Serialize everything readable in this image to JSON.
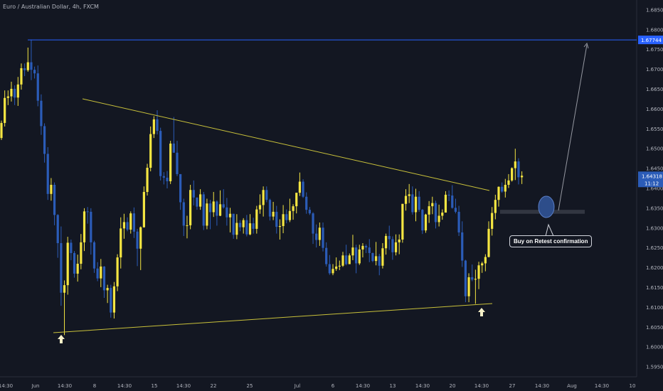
{
  "title": "Euro / Australian Dollar, 4h, FXCM",
  "colors": {
    "background": "#131722",
    "bull": "#f5e642",
    "bear": "#2b5cb8",
    "trendline": "#c9c13a",
    "level": "#2962ff",
    "arrow": "#f5f0c8",
    "zone": "#363a45",
    "ellipse": "#2d4d8a"
  },
  "icons": [
    "up-arrow-icon",
    "up-arrow-icon"
  ],
  "annotation": {
    "text": "Buy on Retest confirmation"
  },
  "price_labels": {
    "level": "1.67744",
    "current": "1.64318",
    "countdown": "11:12"
  },
  "chart_data": {
    "type": "candlestick",
    "title": "Euro / Australian Dollar, 4h, FXCM",
    "ylim": [
      1.5925,
      1.6875
    ],
    "y_ticks": [
      "1.68500",
      "1.68000",
      "1.67500",
      "1.67000",
      "1.66500",
      "1.66000",
      "1.65500",
      "1.65000",
      "1.64500",
      "1.64000",
      "1.63500",
      "1.63000",
      "1.62500",
      "1.62000",
      "1.61500",
      "1.61000",
      "1.60500",
      "1.60000",
      "1.59500"
    ],
    "x_ticks": [
      "14:30",
      "Jun",
      "14:30",
      "8",
      "14:30",
      "15",
      "14:30",
      "22",
      "25",
      "Jul",
      "6",
      "14:30",
      "13",
      "14:30",
      "20",
      "14:30",
      "27",
      "14:30",
      "Aug",
      "14:30",
      "10"
    ],
    "horizontal_level": 1.67744,
    "current_price": 1.64318,
    "candles": [
      [
        1.6527,
        1.6571,
        1.6522,
        1.6565
      ],
      [
        1.6565,
        1.6647,
        1.6556,
        1.6628
      ],
      [
        1.6628,
        1.6647,
        1.661,
        1.6632
      ],
      [
        1.6632,
        1.6669,
        1.6619,
        1.6651
      ],
      [
        1.6651,
        1.666,
        1.661,
        1.6629
      ],
      [
        1.6629,
        1.6681,
        1.6608,
        1.6662
      ],
      [
        1.6662,
        1.6715,
        1.6649,
        1.6703
      ],
      [
        1.6703,
        1.6715,
        1.6683,
        1.6698
      ],
      [
        1.6698,
        1.6755,
        1.6694,
        1.6718
      ],
      [
        1.6718,
        1.6775,
        1.6673,
        1.6699
      ],
      [
        1.6699,
        1.6707,
        1.6677,
        1.669
      ],
      [
        1.669,
        1.671,
        1.6607,
        1.6621
      ],
      [
        1.6621,
        1.6637,
        1.6535,
        1.6557
      ],
      [
        1.6557,
        1.6564,
        1.6465,
        1.6487
      ],
      [
        1.6487,
        1.6504,
        1.6371,
        1.6386
      ],
      [
        1.6386,
        1.6426,
        1.6369,
        1.6409
      ],
      [
        1.6409,
        1.6415,
        1.6307,
        1.6333
      ],
      [
        1.6333,
        1.6335,
        1.6225,
        1.6262
      ],
      [
        1.6262,
        1.6304,
        1.6104,
        1.6137
      ],
      [
        1.6137,
        1.6168,
        1.603,
        1.6156
      ],
      [
        1.6156,
        1.6278,
        1.6132,
        1.6263
      ],
      [
        1.6263,
        1.6271,
        1.6219,
        1.6237
      ],
      [
        1.6237,
        1.6242,
        1.6175,
        1.6185
      ],
      [
        1.6185,
        1.6233,
        1.6165,
        1.621
      ],
      [
        1.621,
        1.6285,
        1.6196,
        1.6264
      ],
      [
        1.6264,
        1.635,
        1.6242,
        1.6342
      ],
      [
        1.6342,
        1.6353,
        1.6311,
        1.6341
      ],
      [
        1.6341,
        1.635,
        1.6233,
        1.6264
      ],
      [
        1.6264,
        1.6268,
        1.6187,
        1.6198
      ],
      [
        1.6198,
        1.6214,
        1.6166,
        1.6173
      ],
      [
        1.6173,
        1.6222,
        1.6151,
        1.6203
      ],
      [
        1.6203,
        1.6204,
        1.6124,
        1.6143
      ],
      [
        1.6143,
        1.6157,
        1.6111,
        1.6149
      ],
      [
        1.6149,
        1.6157,
        1.6074,
        1.6087
      ],
      [
        1.6087,
        1.6164,
        1.6072,
        1.6153
      ],
      [
        1.6153,
        1.6234,
        1.6141,
        1.6226
      ],
      [
        1.6226,
        1.6327,
        1.6198,
        1.6299
      ],
      [
        1.6299,
        1.6336,
        1.6273,
        1.6315
      ],
      [
        1.6315,
        1.6327,
        1.6292,
        1.6296
      ],
      [
        1.6296,
        1.6342,
        1.6286,
        1.6337
      ],
      [
        1.6337,
        1.6352,
        1.6275,
        1.6291
      ],
      [
        1.6291,
        1.6298,
        1.6204,
        1.6248
      ],
      [
        1.6248,
        1.6304,
        1.6194,
        1.6302
      ],
      [
        1.6302,
        1.6405,
        1.6301,
        1.6391
      ],
      [
        1.6391,
        1.6462,
        1.6382,
        1.6452
      ],
      [
        1.6452,
        1.6556,
        1.6443,
        1.6537
      ],
      [
        1.6537,
        1.6582,
        1.6527,
        1.6574
      ],
      [
        1.6574,
        1.6597,
        1.6536,
        1.6545
      ],
      [
        1.6545,
        1.6553,
        1.642,
        1.6431
      ],
      [
        1.6431,
        1.6441,
        1.641,
        1.6427
      ],
      [
        1.6427,
        1.6444,
        1.64,
        1.6418
      ],
      [
        1.6418,
        1.652,
        1.6411,
        1.6513
      ],
      [
        1.6513,
        1.658,
        1.649,
        1.649
      ],
      [
        1.649,
        1.652,
        1.6431,
        1.6436
      ],
      [
        1.6436,
        1.6436,
        1.6346,
        1.6365
      ],
      [
        1.6365,
        1.6374,
        1.628,
        1.6306
      ],
      [
        1.6306,
        1.6331,
        1.6274,
        1.6307
      ],
      [
        1.6307,
        1.6409,
        1.6297,
        1.6396
      ],
      [
        1.6396,
        1.642,
        1.6357,
        1.6377
      ],
      [
        1.6377,
        1.6377,
        1.6346,
        1.6354
      ],
      [
        1.6354,
        1.6398,
        1.6346,
        1.6385
      ],
      [
        1.6385,
        1.6391,
        1.6295,
        1.6306
      ],
      [
        1.6306,
        1.6374,
        1.6297,
        1.6362
      ],
      [
        1.6362,
        1.6371,
        1.6297,
        1.634
      ],
      [
        1.634,
        1.6391,
        1.6328,
        1.6367
      ],
      [
        1.6367,
        1.637,
        1.6306,
        1.6331
      ],
      [
        1.6331,
        1.6395,
        1.633,
        1.636
      ],
      [
        1.636,
        1.6398,
        1.6349,
        1.6352
      ],
      [
        1.6352,
        1.6376,
        1.6306,
        1.6327
      ],
      [
        1.6327,
        1.6351,
        1.6289,
        1.6336
      ],
      [
        1.6336,
        1.6336,
        1.6273,
        1.6283
      ],
      [
        1.6283,
        1.6335,
        1.6272,
        1.6313
      ],
      [
        1.6313,
        1.632,
        1.6292,
        1.6302
      ],
      [
        1.6302,
        1.6325,
        1.6286,
        1.632
      ],
      [
        1.632,
        1.6333,
        1.6279,
        1.6284
      ],
      [
        1.6284,
        1.6335,
        1.6282,
        1.6312
      ],
      [
        1.6312,
        1.6326,
        1.6286,
        1.6298
      ],
      [
        1.6298,
        1.6356,
        1.6286,
        1.6347
      ],
      [
        1.6347,
        1.6385,
        1.6336,
        1.6358
      ],
      [
        1.6358,
        1.6405,
        1.6329,
        1.6396
      ],
      [
        1.6396,
        1.6405,
        1.6365,
        1.6371
      ],
      [
        1.6371,
        1.6374,
        1.6319,
        1.6329
      ],
      [
        1.6329,
        1.6366,
        1.632,
        1.6341
      ],
      [
        1.6341,
        1.6356,
        1.6286,
        1.6303
      ],
      [
        1.6303,
        1.6322,
        1.6271,
        1.6305
      ],
      [
        1.6305,
        1.6358,
        1.6287,
        1.6335
      ],
      [
        1.6335,
        1.6347,
        1.6312,
        1.632
      ],
      [
        1.632,
        1.6374,
        1.6315,
        1.6343
      ],
      [
        1.6343,
        1.636,
        1.6321,
        1.6355
      ],
      [
        1.6355,
        1.6389,
        1.6337,
        1.6389
      ],
      [
        1.6389,
        1.644,
        1.6381,
        1.6417
      ],
      [
        1.6417,
        1.6423,
        1.6376,
        1.6379
      ],
      [
        1.6379,
        1.639,
        1.6336,
        1.6346
      ],
      [
        1.6346,
        1.6353,
        1.6333,
        1.6337
      ],
      [
        1.6337,
        1.634,
        1.626,
        1.6286
      ],
      [
        1.6286,
        1.6309,
        1.6251,
        1.627
      ],
      [
        1.627,
        1.6314,
        1.6255,
        1.6301
      ],
      [
        1.6301,
        1.6314,
        1.6241,
        1.625
      ],
      [
        1.625,
        1.6264,
        1.6203,
        1.6209
      ],
      [
        1.6209,
        1.6232,
        1.6182,
        1.6186
      ],
      [
        1.6186,
        1.6209,
        1.6181,
        1.6197
      ],
      [
        1.6197,
        1.6226,
        1.6192,
        1.6203
      ],
      [
        1.6203,
        1.6218,
        1.6194,
        1.6205
      ],
      [
        1.6205,
        1.624,
        1.6202,
        1.6231
      ],
      [
        1.6231,
        1.6258,
        1.6206,
        1.6209
      ],
      [
        1.6209,
        1.6236,
        1.6209,
        1.6231
      ],
      [
        1.6231,
        1.6283,
        1.6219,
        1.6251
      ],
      [
        1.6251,
        1.6258,
        1.6186,
        1.6211
      ],
      [
        1.6211,
        1.6258,
        1.6207,
        1.6246
      ],
      [
        1.6246,
        1.6262,
        1.6226,
        1.6255
      ],
      [
        1.6255,
        1.6259,
        1.6237,
        1.6251
      ],
      [
        1.6251,
        1.6272,
        1.6214,
        1.6237
      ],
      [
        1.6237,
        1.6238,
        1.6214,
        1.6217
      ],
      [
        1.6217,
        1.6265,
        1.6206,
        1.6229
      ],
      [
        1.6229,
        1.6235,
        1.6181,
        1.6205
      ],
      [
        1.6205,
        1.6262,
        1.6198,
        1.6249
      ],
      [
        1.6249,
        1.6286,
        1.6233,
        1.628
      ],
      [
        1.628,
        1.6306,
        1.6245,
        1.6272
      ],
      [
        1.6272,
        1.6279,
        1.622,
        1.6239
      ],
      [
        1.6239,
        1.6284,
        1.6231,
        1.6264
      ],
      [
        1.6264,
        1.6284,
        1.6234,
        1.6271
      ],
      [
        1.6271,
        1.6361,
        1.6263,
        1.6361
      ],
      [
        1.6361,
        1.6398,
        1.6344,
        1.6381
      ],
      [
        1.6381,
        1.6411,
        1.6363,
        1.6385
      ],
      [
        1.6385,
        1.6405,
        1.6334,
        1.634
      ],
      [
        1.634,
        1.6399,
        1.6317,
        1.6379
      ],
      [
        1.6379,
        1.6393,
        1.6341,
        1.6346
      ],
      [
        1.6346,
        1.6348,
        1.6285,
        1.6294
      ],
      [
        1.6294,
        1.6336,
        1.6288,
        1.6334
      ],
      [
        1.6334,
        1.6368,
        1.6313,
        1.6355
      ],
      [
        1.6355,
        1.6379,
        1.6335,
        1.6363
      ],
      [
        1.6363,
        1.6369,
        1.6299,
        1.6315
      ],
      [
        1.6315,
        1.6359,
        1.6304,
        1.6331
      ],
      [
        1.6331,
        1.6347,
        1.6321,
        1.6339
      ],
      [
        1.6339,
        1.6393,
        1.6339,
        1.6384
      ],
      [
        1.6384,
        1.6395,
        1.6368,
        1.6382
      ],
      [
        1.6382,
        1.6408,
        1.6349,
        1.6351
      ],
      [
        1.6351,
        1.6374,
        1.6337,
        1.6341
      ],
      [
        1.6341,
        1.6356,
        1.628,
        1.6289
      ],
      [
        1.6289,
        1.6317,
        1.6202,
        1.6218
      ],
      [
        1.6218,
        1.622,
        1.6113,
        1.6128
      ],
      [
        1.6128,
        1.6186,
        1.6113,
        1.6176
      ],
      [
        1.6176,
        1.6208,
        1.6166,
        1.617
      ],
      [
        1.617,
        1.6195,
        1.6109,
        1.6172
      ],
      [
        1.6172,
        1.6215,
        1.6146,
        1.6206
      ],
      [
        1.6206,
        1.6215,
        1.6187,
        1.6211
      ],
      [
        1.6211,
        1.6234,
        1.6191,
        1.6227
      ],
      [
        1.6227,
        1.6317,
        1.6226,
        1.6298
      ],
      [
        1.6298,
        1.6353,
        1.6281,
        1.6338
      ],
      [
        1.6338,
        1.6384,
        1.6322,
        1.6371
      ],
      [
        1.6371,
        1.6405,
        1.6354,
        1.6404
      ],
      [
        1.6404,
        1.6415,
        1.6389,
        1.6392
      ],
      [
        1.6392,
        1.6424,
        1.6377,
        1.6409
      ],
      [
        1.6409,
        1.6436,
        1.6401,
        1.642
      ],
      [
        1.642,
        1.6453,
        1.6417,
        1.6451
      ],
      [
        1.6451,
        1.65,
        1.6421,
        1.6468
      ],
      [
        1.6468,
        1.6476,
        1.641,
        1.6428
      ],
      [
        1.6428,
        1.6443,
        1.6411,
        1.6432
      ]
    ]
  }
}
